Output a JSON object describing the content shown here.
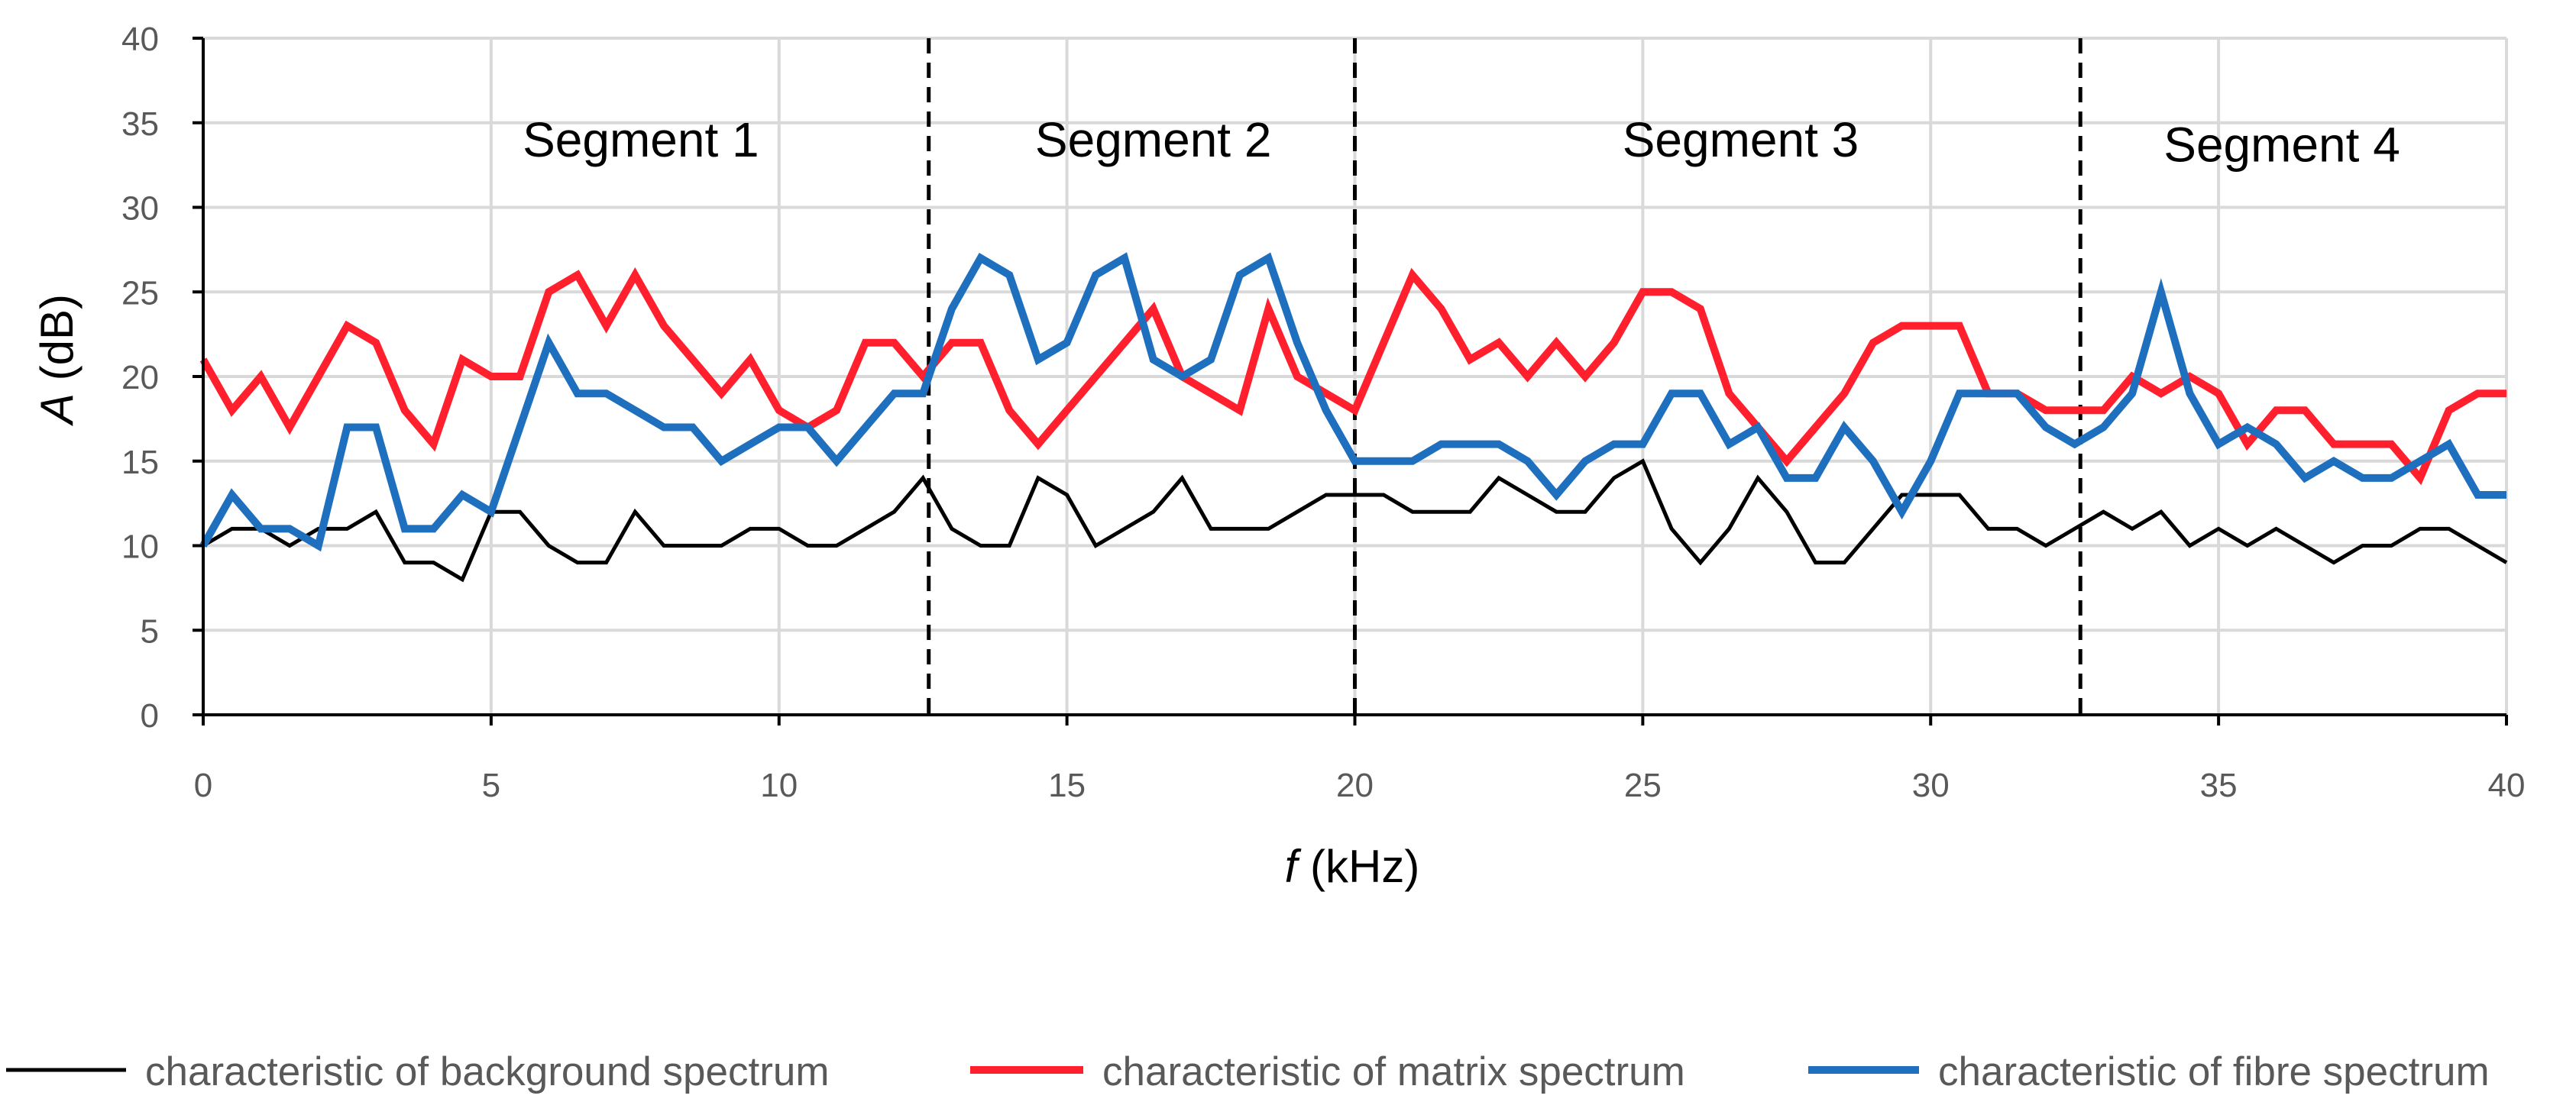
{
  "chart_data": {
    "type": "line",
    "title": "",
    "xlabel": {
      "var": "f",
      "unit": " (kHz)"
    },
    "ylabel": {
      "var": "A",
      "unit": " (dB)"
    },
    "xlim": [
      0,
      40
    ],
    "ylim": [
      0,
      40
    ],
    "xticks": [
      "0",
      "5",
      "10",
      "15",
      "20",
      "25",
      "30",
      "35",
      "40"
    ],
    "yticks": [
      "0",
      "5",
      "10",
      "15",
      "20",
      "25",
      "30",
      "35",
      "40"
    ],
    "grid": true,
    "legend_position": "bottom",
    "segment_boundaries": [
      12.6,
      20,
      32.6
    ],
    "segments": [
      {
        "label": "Segment 1",
        "x": 7.6,
        "y": 33
      },
      {
        "label": "Segment 2",
        "x": 16.5,
        "y": 33
      },
      {
        "label": "Segment 3",
        "x": 26.7,
        "y": 33
      },
      {
        "label": "Segment 4",
        "x": 36.1,
        "y": 32.7
      }
    ],
    "x": [
      0,
      0.5,
      1,
      1.5,
      2,
      2.5,
      3,
      3.5,
      4,
      4.5,
      5,
      5.5,
      6,
      6.5,
      7,
      7.5,
      8,
      8.5,
      9,
      9.5,
      10,
      10.5,
      11,
      11.5,
      12,
      12.5,
      13,
      13.5,
      14,
      14.5,
      15,
      15.5,
      16,
      16.5,
      17,
      17.5,
      18,
      18.5,
      19,
      19.5,
      20,
      20.5,
      21,
      21.5,
      22,
      22.5,
      23,
      23.5,
      24,
      24.5,
      25,
      25.5,
      26,
      26.5,
      27,
      27.5,
      28,
      28.5,
      29,
      29.5,
      30,
      30.5,
      31,
      31.5,
      32,
      32.5,
      33,
      33.5,
      34,
      34.5,
      35,
      35.5,
      36,
      36.5,
      37,
      37.5,
      38,
      38.5,
      39,
      39.5,
      40
    ],
    "series": [
      {
        "name": "characteristic of background spectrum",
        "color": "#000000",
        "values": [
          10,
          11,
          11,
          10,
          11,
          11,
          12,
          9,
          9,
          8,
          12,
          12,
          10,
          9,
          9,
          12,
          10,
          10,
          10,
          11,
          11,
          10,
          10,
          11,
          12,
          14,
          11,
          10,
          10,
          14,
          13,
          10,
          11,
          12,
          14,
          11,
          11,
          11,
          12,
          13,
          13,
          13,
          12,
          12,
          12,
          14,
          13,
          12,
          12,
          14,
          15,
          11,
          9,
          11,
          14,
          12,
          9,
          9,
          11,
          13,
          13,
          13,
          11,
          11,
          10,
          11,
          12,
          11,
          12,
          10,
          11,
          10,
          11,
          10,
          9,
          10,
          10,
          11,
          11,
          10,
          9
        ]
      },
      {
        "name": "characteristic of matrix spectrum",
        "color": "#ff1f2d",
        "values": [
          21,
          18,
          20,
          17,
          20,
          23,
          22,
          18,
          16,
          21,
          20,
          20,
          25,
          26,
          23,
          26,
          23,
          21,
          19,
          21,
          18,
          17,
          18,
          22,
          22,
          20,
          22,
          22,
          18,
          16,
          18,
          20,
          22,
          24,
          20,
          19,
          18,
          24,
          20,
          19,
          18,
          22,
          26,
          24,
          21,
          22,
          20,
          22,
          20,
          22,
          25,
          25,
          24,
          19,
          17,
          15,
          17,
          19,
          22,
          23,
          23,
          23,
          19,
          19,
          18,
          18,
          18,
          20,
          19,
          20,
          19,
          16,
          18,
          18,
          16,
          16,
          16,
          14,
          18,
          19,
          19
        ]
      },
      {
        "name": "characteristic of fibre spectrum",
        "color": "#1e6fbe",
        "values": [
          10,
          13,
          11,
          11,
          10,
          17,
          17,
          11,
          11,
          13,
          12,
          17,
          22,
          19,
          19,
          18,
          17,
          17,
          15,
          16,
          17,
          17,
          15,
          17,
          19,
          19,
          24,
          27,
          26,
          21,
          22,
          26,
          27,
          21,
          20,
          21,
          26,
          27,
          22,
          18,
          15,
          15,
          15,
          16,
          16,
          16,
          15,
          13,
          15,
          16,
          16,
          19,
          19,
          16,
          17,
          14,
          14,
          17,
          15,
          12,
          15,
          19,
          19,
          19,
          17,
          16,
          17,
          19,
          25,
          19,
          16,
          17,
          16,
          14,
          15,
          14,
          14,
          15,
          16,
          13,
          13
        ]
      }
    ]
  }
}
